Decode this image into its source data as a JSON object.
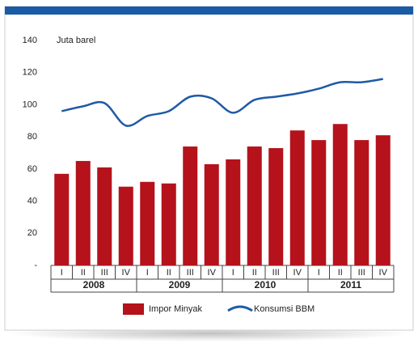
{
  "chart_data": {
    "type": "bar-line",
    "annotation": "Juta barel",
    "categories": [
      "I",
      "II",
      "III",
      "IV",
      "I",
      "II",
      "III",
      "IV",
      "I",
      "II",
      "III",
      "IV",
      "I",
      "II",
      "III",
      "IV"
    ],
    "years": [
      "2008",
      "2009",
      "2010",
      "2011"
    ],
    "series": [
      {
        "name": "Impor Minyak",
        "type": "bar",
        "color": "#b5121b",
        "values": [
          57,
          65,
          61,
          49,
          52,
          51,
          74,
          63,
          66,
          74,
          73,
          84,
          78,
          88,
          78,
          81
        ]
      },
      {
        "name": "Konsumsi BBM",
        "type": "line",
        "color": "#1f5aa6",
        "values": [
          96,
          99,
          101,
          87,
          93,
          96,
          105,
          104,
          95,
          103,
          105,
          107,
          110,
          114,
          114,
          116
        ]
      }
    ],
    "ylim": [
      0,
      140
    ],
    "yticks": [
      {
        "value": 0,
        "label": "-"
      },
      20,
      40,
      60,
      80,
      100,
      120,
      140
    ],
    "legend": "bottom"
  }
}
